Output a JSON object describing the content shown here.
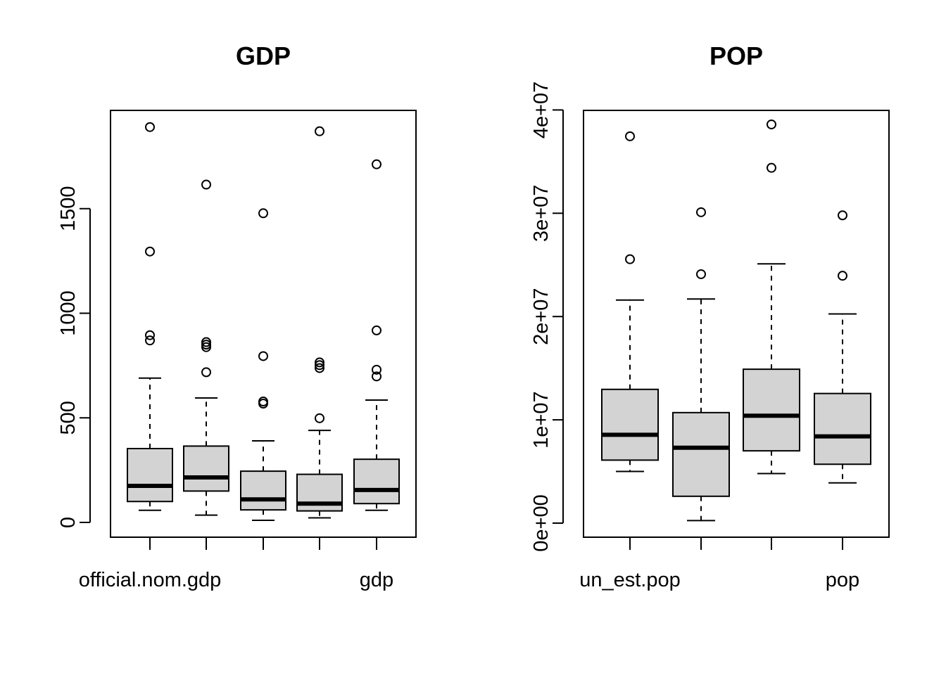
{
  "chart_data": [
    {
      "type": "boxplot",
      "title": "GDP",
      "xlabel": "",
      "ylabel": "",
      "ylim": [
        0,
        1950
      ],
      "yticks": [
        0,
        500,
        1000,
        1500
      ],
      "ytick_labels": [
        "0",
        "500",
        "1000",
        "1500"
      ],
      "x_tick_labels": [
        "official.nom.gdp",
        "",
        "",
        "",
        "gdp"
      ],
      "box_color": "#d3d3d3",
      "grid": false,
      "series": [
        {
          "whisker_low": 58,
          "q1": 100,
          "median": 175,
          "q3": 353,
          "whisker_high": 690,
          "outliers": [
            870,
            895,
            1295,
            1890
          ]
        },
        {
          "whisker_low": 35,
          "q1": 150,
          "median": 215,
          "q3": 365,
          "whisker_high": 595,
          "outliers": [
            718,
            838,
            850,
            862,
            1615
          ]
        },
        {
          "whisker_low": 10,
          "q1": 60,
          "median": 110,
          "q3": 245,
          "whisker_high": 390,
          "outliers": [
            568,
            578,
            795,
            1478
          ]
        },
        {
          "whisker_low": 22,
          "q1": 55,
          "median": 90,
          "q3": 230,
          "whisker_high": 440,
          "outliers": [
            498,
            738,
            752,
            765,
            1870
          ]
        },
        {
          "whisker_low": 58,
          "q1": 90,
          "median": 155,
          "q3": 302,
          "whisker_high": 585,
          "outliers": [
            698,
            730,
            918,
            1712
          ]
        }
      ]
    },
    {
      "type": "boxplot",
      "title": "POP",
      "xlabel": "",
      "ylabel": "",
      "ylim": [
        0,
        40600000
      ],
      "yticks": [
        0,
        10000000,
        20000000,
        30000000,
        40000000
      ],
      "ytick_labels": [
        "0e+00",
        "1e+07",
        "2e+07",
        "3e+07",
        "4e+07"
      ],
      "x_tick_labels": [
        "un_est.pop",
        "",
        "",
        "pop"
      ],
      "box_color": "#d3d3d3",
      "grid": false,
      "series": [
        {
          "whisker_low": 5000000,
          "q1": 6100000,
          "median": 8550000,
          "q3": 12950000,
          "whisker_high": 21600000,
          "outliers": [
            25550000,
            37450000
          ]
        },
        {
          "whisker_low": 250000,
          "q1": 2600000,
          "median": 7300000,
          "q3": 10700000,
          "whisker_high": 21700000,
          "outliers": [
            24100000,
            30100000
          ]
        },
        {
          "whisker_low": 4800000,
          "q1": 7000000,
          "median": 10400000,
          "q3": 14900000,
          "whisker_high": 25100000,
          "outliers": [
            34400000,
            38600000
          ]
        },
        {
          "whisker_low": 3900000,
          "q1": 5700000,
          "median": 8400000,
          "q3": 12550000,
          "whisker_high": 20250000,
          "outliers": [
            23950000,
            29800000
          ]
        }
      ]
    }
  ]
}
